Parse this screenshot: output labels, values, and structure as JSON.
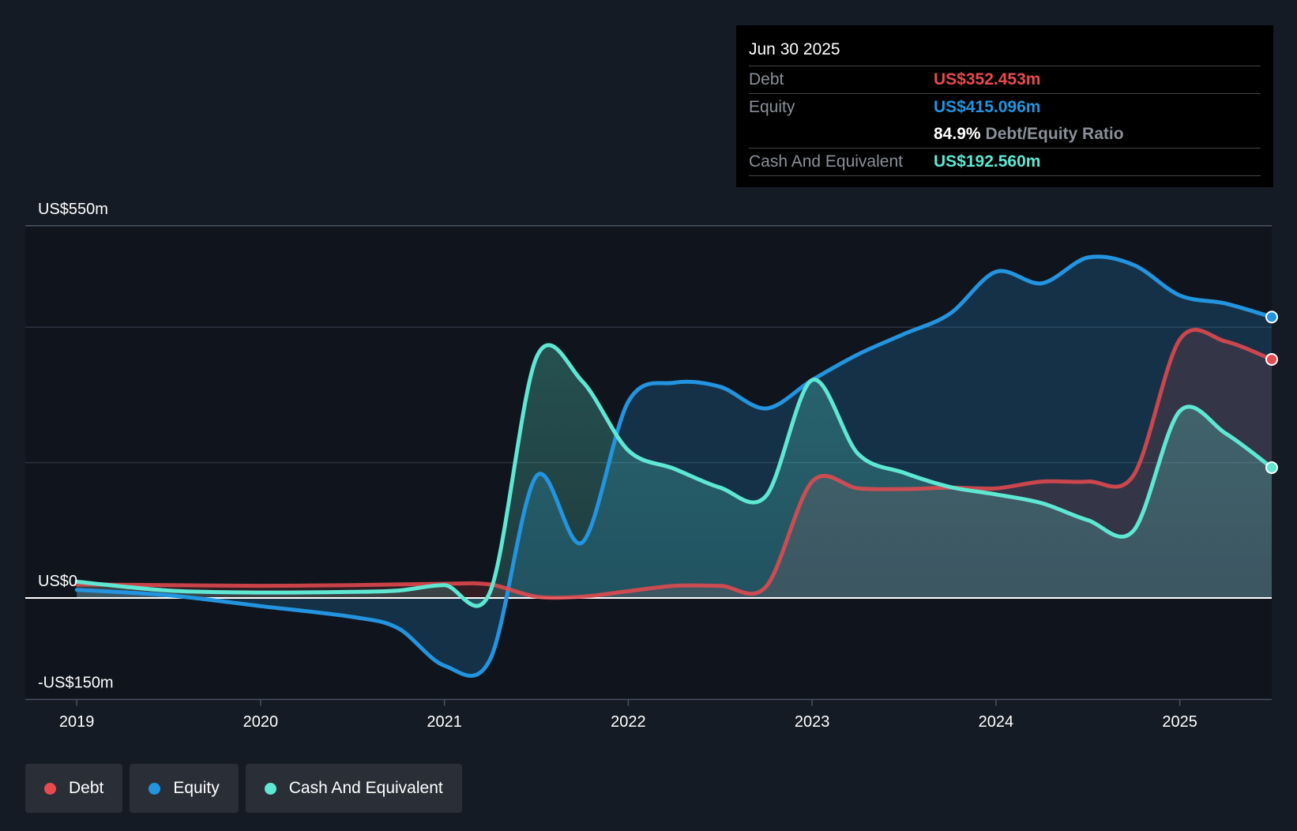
{
  "chart_data": {
    "type": "area",
    "title": "",
    "y_axis_labels": [
      "US$550m",
      "US$0",
      "-US$150m"
    ],
    "ylim": [
      -150,
      550
    ],
    "x_ticks": [
      "2019",
      "2020",
      "2021",
      "2022",
      "2023",
      "2024",
      "2025"
    ],
    "x_tick_values": [
      2019,
      2020,
      2021,
      2022,
      2023,
      2024,
      2025
    ],
    "xlim": [
      2018.72,
      2025.5
    ],
    "series": [
      {
        "name": "Debt",
        "color": "#e84a4f",
        "x": [
          2019.0,
          2019.5,
          2020.0,
          2020.5,
          2021.0,
          2021.25,
          2021.5,
          2021.75,
          2022.0,
          2022.25,
          2022.5,
          2022.75,
          2023.0,
          2023.25,
          2023.5,
          2023.75,
          2024.0,
          2024.25,
          2024.5,
          2024.75,
          2025.0,
          2025.25,
          2025.5
        ],
        "values": [
          20,
          19,
          18,
          19,
          21,
          20,
          2,
          2,
          10,
          18,
          18,
          17,
          172,
          162,
          161,
          163,
          162,
          172,
          172,
          182,
          382,
          379,
          352.453
        ]
      },
      {
        "name": "Equity",
        "color": "#2394df",
        "x": [
          2019.0,
          2019.5,
          2020.0,
          2020.5,
          2020.75,
          2021.0,
          2021.25,
          2021.5,
          2021.75,
          2022.0,
          2022.25,
          2022.5,
          2022.75,
          2023.0,
          2023.25,
          2023.5,
          2023.75,
          2024.0,
          2024.25,
          2024.5,
          2024.75,
          2025.0,
          2025.25,
          2025.5
        ],
        "values": [
          12,
          4,
          -12,
          -28,
          -45,
          -100,
          -90,
          180,
          82,
          290,
          318,
          312,
          280,
          322,
          360,
          390,
          420,
          482,
          465,
          503,
          492,
          447,
          435,
          415.096
        ]
      },
      {
        "name": "Cash And Equivalent",
        "color": "#5ee8d3",
        "x": [
          2019.0,
          2019.5,
          2020.0,
          2020.5,
          2020.75,
          2021.0,
          2021.25,
          2021.5,
          2021.75,
          2022.0,
          2022.25,
          2022.5,
          2022.75,
          2023.0,
          2023.25,
          2023.5,
          2023.75,
          2024.0,
          2024.25,
          2024.5,
          2024.75,
          2025.0,
          2025.25,
          2025.5
        ],
        "values": [
          24,
          11,
          8,
          9,
          11,
          19,
          10,
          355,
          320,
          218,
          191,
          163,
          151,
          322,
          213,
          185,
          164,
          153,
          140,
          115,
          100,
          276,
          243,
          192.56
        ]
      }
    ],
    "legend": [
      "Debt",
      "Equity",
      "Cash And Equivalent"
    ],
    "legend_position": "bottom-left",
    "tooltip": {
      "date": "Jun 30 2025",
      "debt_label": "Debt",
      "debt_value": "US$352.453m",
      "equity_label": "Equity",
      "equity_value": "US$415.096m",
      "ratio_value": "84.9%",
      "ratio_label": "Debt/Equity Ratio",
      "cash_label": "Cash And Equivalent",
      "cash_value": "US$192.560m"
    }
  }
}
